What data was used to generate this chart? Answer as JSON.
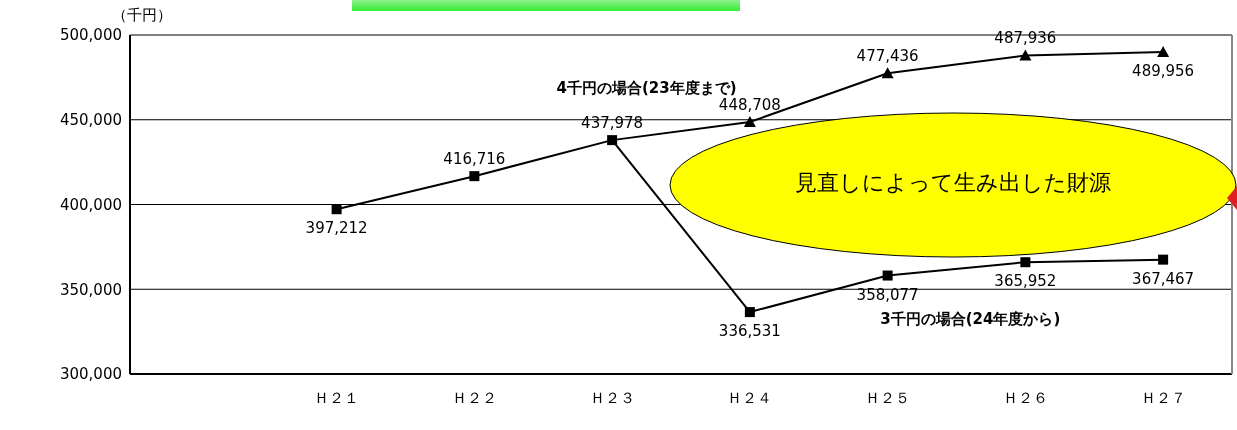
{
  "chart_data": {
    "type": "line",
    "ylabel": "（千円）",
    "categories": [
      null,
      "Ｈ２１",
      "Ｈ２２",
      "Ｈ２３",
      "Ｈ２４",
      "Ｈ２５",
      "Ｈ２６",
      "Ｈ２７"
    ],
    "series": [
      {
        "color": "#000000",
        "marker": "square",
        "values": [
          null,
          397212,
          416716,
          437978,
          null,
          null,
          null,
          null
        ],
        "value_labels": [
          null,
          "397,212",
          "416,716",
          "437,978",
          null,
          null,
          null,
          null
        ]
      },
      {
        "name": "4千円の場合(23年度まで)",
        "color": "#000000",
        "marker": "triangle",
        "values": [
          null,
          null,
          null,
          437978,
          448708,
          477436,
          487936,
          489956
        ],
        "value_labels": [
          null,
          null,
          null,
          null,
          "448,708",
          "477,436",
          "487,936",
          "489,956"
        ]
      },
      {
        "name": "3千円の場合(24年度から)",
        "color": "#000000",
        "marker": "square",
        "values": [
          null,
          null,
          null,
          437978,
          336531,
          358077,
          365952,
          367467
        ],
        "value_labels": [
          null,
          null,
          null,
          null,
          "336,531",
          "358,077",
          "365,952",
          "367,467"
        ]
      }
    ],
    "ylim": [
      300000,
      500000
    ],
    "yticks": [
      {
        "value": 300000,
        "label": "300,000"
      },
      {
        "value": 350000,
        "label": "350,000"
      },
      {
        "value": 400000,
        "label": "400,000"
      },
      {
        "value": 450000,
        "label": "450,000"
      },
      {
        "value": 500000,
        "label": "500,000"
      }
    ],
    "grid": "y",
    "legend": false,
    "line_style": "solid",
    "annotations": [
      "見直しによって生み出した財源"
    ]
  }
}
